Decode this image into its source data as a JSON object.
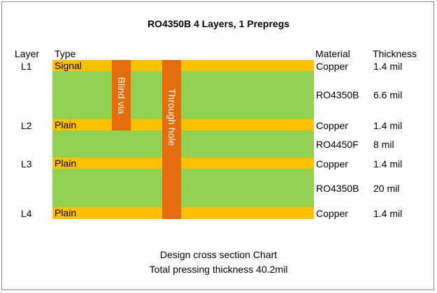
{
  "title": "RO4350B 4 Layers, 1 Prepregs",
  "headers": {
    "layer": "Layer",
    "type": "Type",
    "material": "Material",
    "thickness": "Thickness"
  },
  "layers": [
    {
      "id": "L1",
      "type": "Signal",
      "material": "Copper",
      "thickness": "1.4 mil"
    },
    {
      "material": "RO4350B",
      "thickness": "6.6 mil"
    },
    {
      "id": "L2",
      "type": "Plain",
      "material": "Copper",
      "thickness": "1.4 mil"
    },
    {
      "material": "RO4450F",
      "thickness": "8 mil"
    },
    {
      "id": "L3",
      "type": "Plain",
      "material": "Copper",
      "thickness": "1.4 mil"
    },
    {
      "material": "RO4350B",
      "thickness": "20 mil"
    },
    {
      "id": "L4",
      "type": "Plain",
      "material": "Copper",
      "thickness": "1.4 mil"
    }
  ],
  "vias": {
    "blind": "Blind via",
    "through": "Through hole"
  },
  "caption": {
    "line1": "Design cross section Chart",
    "line2": "Total pressing thickness 40.2mil"
  },
  "colors": {
    "copper": "#ffc000",
    "core": "#92d050",
    "via": "#e46c0a"
  }
}
